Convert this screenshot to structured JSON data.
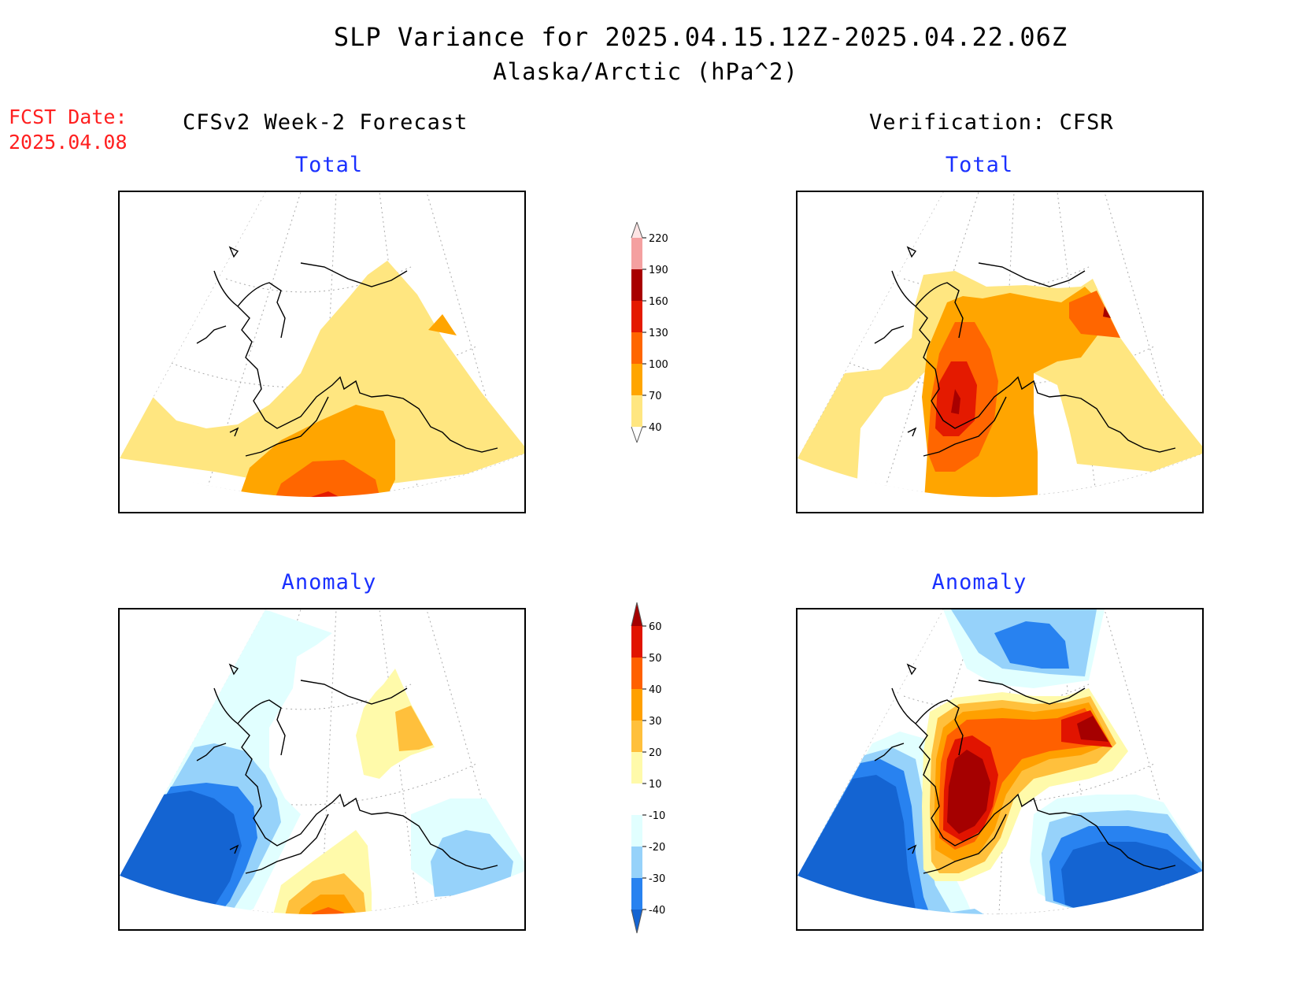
{
  "title": "SLP Variance for 2025.04.15.12Z-2025.04.22.06Z",
  "subtitle": "Alaska/Arctic (hPa^2)",
  "fcst_date_label": "FCST Date:",
  "fcst_date_value": "2025.04.08",
  "left_column_title": "CFSv2 Week-2 Forecast",
  "right_column_title": "Verification: CFSR",
  "panels": {
    "forecast_total": {
      "label": "Total"
    },
    "verification_total": {
      "label": "Total"
    },
    "forecast_anomaly": {
      "label": "Anomaly"
    },
    "verification_anomaly": {
      "label": "Anomaly"
    }
  },
  "colorbars": {
    "total": {
      "levels": [
        "40",
        "70",
        "100",
        "130",
        "160",
        "190",
        "220"
      ],
      "colors": [
        "#ffe680",
        "#ffa500",
        "#ff6600",
        "#e41a00",
        "#a80000",
        "#f4a0a0",
        "#fde4e4"
      ]
    },
    "anomaly": {
      "levels": [
        "-40",
        "-30",
        "-20",
        "-10",
        "10",
        "20",
        "30",
        "40",
        "50",
        "60"
      ],
      "colors": [
        "#1464d2",
        "#2882f0",
        "#96d2fa",
        "#e1ffff",
        "#ffffff",
        "#fffaaa",
        "#ffc03c",
        "#ffa000",
        "#ff6000",
        "#e11400",
        "#a50000"
      ]
    }
  }
}
